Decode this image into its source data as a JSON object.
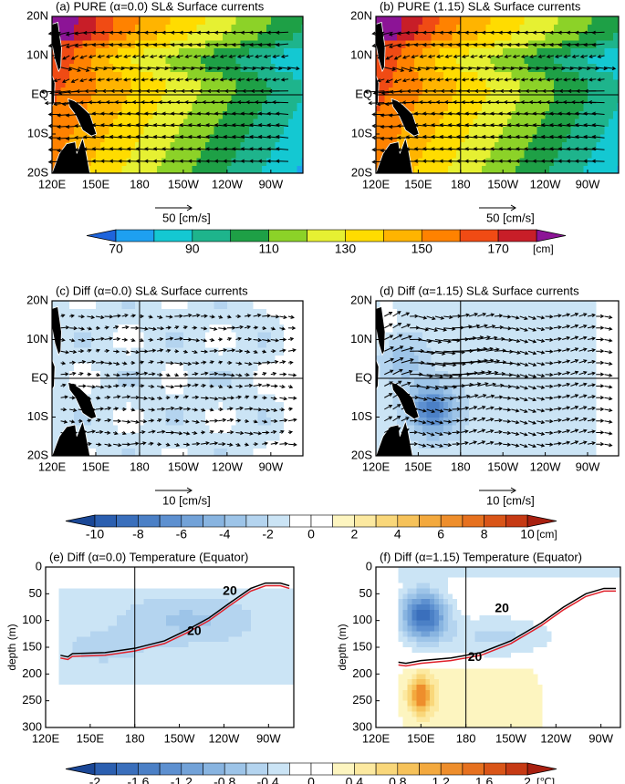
{
  "chart_data": [
    {
      "type": "map",
      "title": "(a) PURE (α=0.0)  SL& Surface currents",
      "xlim": [
        120,
        292
      ],
      "ylim": [
        -20,
        20
      ],
      "xticks": [
        {
          "value": 120,
          "label": "120E"
        },
        {
          "value": 150,
          "label": "150E"
        },
        180,
        {
          "value": 210,
          "label": "150W"
        },
        {
          "value": 240,
          "label": "120W"
        },
        {
          "value": 270,
          "label": "90W"
        }
      ],
      "yticks": [
        {
          "value": -20,
          "label": "20S"
        },
        {
          "value": -10,
          "label": "10S"
        },
        {
          "value": 0,
          "label": "EQ"
        },
        {
          "value": 10,
          "label": "10N"
        },
        {
          "value": 20,
          "label": "20N"
        }
      ],
      "colorbar": 0,
      "ref_vector_label": "50 [cm/s]"
    },
    {
      "type": "map",
      "title": "(b) PURE (1.15)  SL& Surface currents",
      "xlim": [
        120,
        292
      ],
      "ylim": [
        -20,
        20
      ],
      "xticks": [
        {
          "value": 120,
          "label": "120E"
        },
        {
          "value": 150,
          "label": "150E"
        },
        180,
        {
          "value": 210,
          "label": "150W"
        },
        {
          "value": 240,
          "label": "120W"
        },
        {
          "value": 270,
          "label": "90W"
        }
      ],
      "yticks": [
        {
          "value": -20,
          "label": "20S"
        },
        {
          "value": -10,
          "label": "10S"
        },
        {
          "value": 0,
          "label": "EQ"
        },
        {
          "value": 10,
          "label": "10N"
        },
        {
          "value": 20,
          "label": "20N"
        }
      ],
      "colorbar": 0,
      "ref_vector_label": "50 [cm/s]"
    },
    {
      "type": "map",
      "title": "(c) Diff (α=0.0)  SL& Surface currents",
      "xlim": [
        120,
        292
      ],
      "ylim": [
        -20,
        20
      ],
      "xticks": [
        {
          "value": 120,
          "label": "120E"
        },
        {
          "value": 150,
          "label": "150E"
        },
        180,
        {
          "value": 210,
          "label": "150W"
        },
        {
          "value": 240,
          "label": "120W"
        },
        {
          "value": 270,
          "label": "90W"
        }
      ],
      "yticks": [
        {
          "value": -20,
          "label": "20S"
        },
        {
          "value": -10,
          "label": "10S"
        },
        {
          "value": 0,
          "label": "EQ"
        },
        {
          "value": 10,
          "label": "10N"
        },
        {
          "value": 20,
          "label": "20N"
        }
      ],
      "colorbar": 1,
      "ref_vector_label": "10 [cm/s]"
    },
    {
      "type": "map",
      "title": "(d) Diff (α=1.15)  SL& Surface currents",
      "xlim": [
        120,
        292
      ],
      "ylim": [
        -20,
        20
      ],
      "xticks": [
        {
          "value": 120,
          "label": "120E"
        },
        {
          "value": 150,
          "label": "150E"
        },
        180,
        {
          "value": 210,
          "label": "150W"
        },
        {
          "value": 240,
          "label": "120W"
        },
        {
          "value": 270,
          "label": "90W"
        }
      ],
      "yticks": [
        {
          "value": -20,
          "label": "20S"
        },
        {
          "value": -10,
          "label": "10S"
        },
        {
          "value": 0,
          "label": "EQ"
        },
        {
          "value": 10,
          "label": "10N"
        },
        {
          "value": 20,
          "label": "20N"
        }
      ],
      "colorbar": 1,
      "ref_vector_label": "10 [cm/s]"
    },
    {
      "type": "section",
      "title": "(e) Diff (α=0.0)  Temperature (Equator)",
      "ylabel": "depth (m)",
      "xlim": [
        120,
        287
      ],
      "ylim": [
        0,
        300
      ],
      "y_inverted": true,
      "xticks": [
        {
          "value": 120,
          "label": "120E"
        },
        {
          "value": 150,
          "label": "150E"
        },
        180,
        {
          "value": 210,
          "label": "150W"
        },
        {
          "value": 240,
          "label": "120W"
        },
        {
          "value": 270,
          "label": "90W"
        }
      ],
      "yticks": [
        0,
        50,
        100,
        150,
        200,
        250,
        300
      ],
      "colorbar": 2,
      "contour_labels": [
        {
          "value": 20,
          "color": "#1a9a50"
        },
        {
          "value": 20,
          "color": "#e0202a"
        }
      ]
    },
    {
      "type": "section",
      "title": "(f) Diff (α=1.15)  Temperature (Equator)",
      "ylabel": "depth (m)",
      "xlim": [
        120,
        283
      ],
      "ylim": [
        0,
        300
      ],
      "y_inverted": true,
      "xticks": [
        {
          "value": 120,
          "label": "120E"
        },
        {
          "value": 150,
          "label": "150E"
        },
        180,
        {
          "value": 210,
          "label": "150W"
        },
        {
          "value": 240,
          "label": "120W"
        },
        {
          "value": 270,
          "label": "90W"
        }
      ],
      "yticks": [
        0,
        50,
        100,
        150,
        200,
        250,
        300
      ],
      "colorbar": 2,
      "contour_labels": [
        {
          "value": 20,
          "color": "#1a9a50"
        },
        {
          "value": 20,
          "color": "#e0202a"
        }
      ]
    }
  ],
  "colorbars": [
    {
      "levels": [
        70,
        80,
        90,
        100,
        110,
        120,
        130,
        140,
        150,
        160,
        170,
        180
      ],
      "ticks": [
        70,
        90,
        110,
        130,
        150,
        170
      ],
      "unit": "[cm]",
      "under_color": "#1e64dc",
      "over_color": "#8c1496",
      "colors": [
        "#1ea0f0",
        "#14c8d2",
        "#1eb48c",
        "#1ea046",
        "#8cd228",
        "#e6f032",
        "#ffdc00",
        "#ffb400",
        "#ff8200",
        "#f04b14",
        "#c81e28"
      ]
    },
    {
      "levels": [
        -10,
        -9,
        -8,
        -7,
        -6,
        -5,
        -4,
        -3,
        -2,
        -1,
        0,
        1,
        2,
        3,
        4,
        5,
        6,
        7,
        8,
        9,
        10
      ],
      "ticks": [
        -10,
        -8,
        -6,
        -4,
        -2,
        0,
        2,
        4,
        6,
        8,
        10
      ],
      "unit": "[cm]",
      "under_color": "#1a4796",
      "over_color": "#a82010",
      "colors": [
        "#2b5fb0",
        "#3a6fbc",
        "#4b80c6",
        "#5d90d0",
        "#72a2d8",
        "#88b4e0",
        "#9dc4e8",
        "#b4d4ef",
        "#cbe4f5",
        "#ffffff",
        "#ffffff",
        "#fdf5c0",
        "#fce9a0",
        "#f9d77a",
        "#f6c25a",
        "#f3a93e",
        "#ee8e2c",
        "#e6711f",
        "#d95518",
        "#c63a14"
      ]
    },
    {
      "levels": [
        -2,
        -1.8,
        -1.6,
        -1.4,
        -1.2,
        -1,
        -0.8,
        -0.6,
        -0.4,
        -0.2,
        0,
        0.2,
        0.4,
        0.6,
        0.8,
        1,
        1.2,
        1.4,
        1.6,
        1.8,
        2
      ],
      "ticks": [
        -2,
        -1.6,
        -1.2,
        -0.8,
        -0.4,
        0,
        0.4,
        0.8,
        1.2,
        1.6,
        2
      ],
      "unit": "[℃]",
      "under_color": "#1a4796",
      "over_color": "#a82010",
      "colors": [
        "#2b5fb0",
        "#3a6fbc",
        "#4b80c6",
        "#5d90d0",
        "#72a2d8",
        "#88b4e0",
        "#9dc4e8",
        "#b4d4ef",
        "#cbe4f5",
        "#ffffff",
        "#ffffff",
        "#fdf5c0",
        "#fce9a0",
        "#f9d77a",
        "#f6c25a",
        "#f3a93e",
        "#ee8e2c",
        "#e6711f",
        "#d95518",
        "#c63a14"
      ]
    }
  ]
}
